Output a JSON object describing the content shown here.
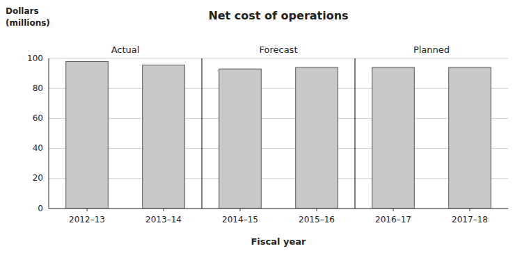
{
  "chart_data": {
    "type": "bar",
    "title": "Net cost of operations",
    "xlabel": "Fiscal year",
    "ylabel": [
      "Dollars",
      "(millions)"
    ],
    "categories": [
      "2012–13",
      "2013–14",
      "2014–15",
      "2015–16",
      "2016–17",
      "2017–18"
    ],
    "values": [
      98.0,
      95.5,
      93.0,
      94.0,
      94.0,
      94.0
    ],
    "color": "#c8c8c8",
    "ylim": [
      0,
      100
    ],
    "yticks": [
      0,
      20,
      40,
      60,
      80,
      100
    ],
    "grid": true,
    "groups": [
      {
        "name": "Actual",
        "categories": [
          "2012–13",
          "2013–14"
        ]
      },
      {
        "name": "Forecast",
        "categories": [
          "2014–15",
          "2015–16"
        ]
      },
      {
        "name": "Planned",
        "categories": [
          "2016–17",
          "2017–18"
        ]
      }
    ]
  }
}
